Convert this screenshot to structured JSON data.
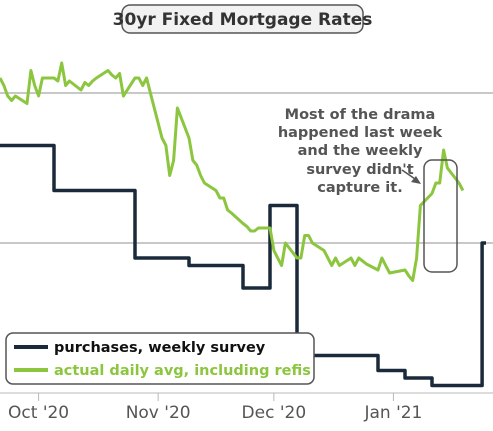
{
  "chart_data": {
    "type": "line",
    "title": "30yr Fixed Mortgage Rates",
    "x_ticks": [
      {
        "label": "Oct '20",
        "date": "2020-10-01"
      },
      {
        "label": "Nov '20",
        "date": "2020-11-01"
      },
      {
        "label": "Dec '20",
        "date": "2020-12-01"
      },
      {
        "label": "Jan '21",
        "date": "2021-01-01"
      }
    ],
    "xlim": [
      "2020-09-21",
      "2021-01-25"
    ],
    "series": [
      {
        "name": "purchases, weekly survey",
        "color": "#1a2a3a",
        "style": "step",
        "points": [
          [
            "2020-09-21",
            3.115
          ],
          [
            "2020-09-28",
            3.115
          ],
          [
            "2020-10-05",
            3.085
          ],
          [
            "2020-10-12",
            3.085
          ],
          [
            "2020-10-19",
            3.085
          ],
          [
            "2020-10-26",
            3.04
          ],
          [
            "2020-11-02",
            3.04
          ],
          [
            "2020-11-09",
            3.035
          ],
          [
            "2020-11-16",
            3.035
          ],
          [
            "2020-11-23",
            3.02
          ],
          [
            "2020-11-30",
            3.075
          ],
          [
            "2020-12-07",
            2.975
          ],
          [
            "2020-12-14",
            2.975
          ],
          [
            "2020-12-21",
            2.975
          ],
          [
            "2020-12-28",
            2.965
          ],
          [
            "2021-01-04",
            2.96
          ],
          [
            "2021-01-11",
            2.955
          ],
          [
            "2021-01-18",
            2.955
          ],
          [
            "2021-01-24",
            3.05
          ],
          [
            "2021-01-25",
            3.05
          ]
        ]
      },
      {
        "name": "actual daily avg, including refis",
        "color": "#8cc63f",
        "style": "line",
        "points": [
          [
            "2020-09-21",
            3.16
          ],
          [
            "2020-09-22",
            3.155
          ],
          [
            "2020-09-23",
            3.148
          ],
          [
            "2020-09-24",
            3.145
          ],
          [
            "2020-09-25",
            3.148
          ],
          [
            "2020-09-28",
            3.143
          ],
          [
            "2020-09-29",
            3.165
          ],
          [
            "2020-09-30",
            3.155
          ],
          [
            "2020-10-01",
            3.148
          ],
          [
            "2020-10-02",
            3.16
          ],
          [
            "2020-10-05",
            3.16
          ],
          [
            "2020-10-06",
            3.158
          ],
          [
            "2020-10-07",
            3.17
          ],
          [
            "2020-10-08",
            3.155
          ],
          [
            "2020-10-09",
            3.158
          ],
          [
            "2020-10-12",
            3.152
          ],
          [
            "2020-10-13",
            3.157
          ],
          [
            "2020-10-14",
            3.155
          ],
          [
            "2020-10-15",
            3.158
          ],
          [
            "2020-10-16",
            3.16
          ],
          [
            "2020-10-19",
            3.165
          ],
          [
            "2020-10-20",
            3.162
          ],
          [
            "2020-10-21",
            3.16
          ],
          [
            "2020-10-22",
            3.163
          ],
          [
            "2020-10-23",
            3.148
          ],
          [
            "2020-10-26",
            3.16
          ],
          [
            "2020-10-27",
            3.16
          ],
          [
            "2020-10-28",
            3.155
          ],
          [
            "2020-10-29",
            3.16
          ],
          [
            "2020-10-30",
            3.15
          ],
          [
            "2020-11-02",
            3.12
          ],
          [
            "2020-11-03",
            3.115
          ],
          [
            "2020-11-04",
            3.095
          ],
          [
            "2020-11-05",
            3.105
          ],
          [
            "2020-11-06",
            3.14
          ],
          [
            "2020-11-09",
            3.12
          ],
          [
            "2020-11-10",
            3.105
          ],
          [
            "2020-11-11",
            3.102
          ],
          [
            "2020-11-12",
            3.095
          ],
          [
            "2020-11-13",
            3.09
          ],
          [
            "2020-11-16",
            3.085
          ],
          [
            "2020-11-17",
            3.08
          ],
          [
            "2020-11-18",
            3.08
          ],
          [
            "2020-11-19",
            3.072
          ],
          [
            "2020-11-20",
            3.07
          ],
          [
            "2020-11-23",
            3.063
          ],
          [
            "2020-11-24",
            3.061
          ],
          [
            "2020-11-25",
            3.058
          ],
          [
            "2020-11-26",
            3.058
          ],
          [
            "2020-11-27",
            3.06
          ],
          [
            "2020-11-30",
            3.06
          ],
          [
            "2020-12-01",
            3.045
          ],
          [
            "2020-12-02",
            3.04
          ],
          [
            "2020-12-03",
            3.035
          ],
          [
            "2020-12-04",
            3.05
          ],
          [
            "2020-12-07",
            3.04
          ],
          [
            "2020-12-08",
            3.04
          ],
          [
            "2020-12-09",
            3.055
          ],
          [
            "2020-12-10",
            3.055
          ],
          [
            "2020-12-11",
            3.05
          ],
          [
            "2020-12-14",
            3.045
          ],
          [
            "2020-12-15",
            3.04
          ],
          [
            "2020-12-16",
            3.035
          ],
          [
            "2020-12-17",
            3.04
          ],
          [
            "2020-12-18",
            3.035
          ],
          [
            "2020-12-21",
            3.04
          ],
          [
            "2020-12-22",
            3.035
          ],
          [
            "2020-12-23",
            3.04
          ],
          [
            "2020-12-24",
            3.038
          ],
          [
            "2020-12-25",
            3.036
          ],
          [
            "2020-12-28",
            3.032
          ],
          [
            "2020-12-29",
            3.04
          ],
          [
            "2020-12-30",
            3.035
          ],
          [
            "2020-12-31",
            3.03
          ],
          [
            "2021-01-04",
            3.032
          ],
          [
            "2021-01-05",
            3.028
          ],
          [
            "2021-01-06",
            3.025
          ],
          [
            "2021-01-07",
            3.04
          ],
          [
            "2021-01-08",
            3.075
          ],
          [
            "2021-01-11",
            3.083
          ],
          [
            "2021-01-12",
            3.09
          ],
          [
            "2021-01-13",
            3.09
          ],
          [
            "2021-01-14",
            3.112
          ],
          [
            "2021-01-15",
            3.1
          ],
          [
            "2021-01-18",
            3.09
          ],
          [
            "2021-01-19",
            3.085
          ]
        ]
      }
    ],
    "legend": {
      "position": "bottom-left",
      "entries": [
        {
          "label": "purchases, weekly survey",
          "color": "#1a2a3a"
        },
        {
          "label": "actual daily avg, including refis",
          "color": "#8cc63f"
        }
      ]
    },
    "annotation": {
      "lines": [
        "Most of the drama",
        "happened last week",
        "and the weekly",
        "survey didn't",
        "capture it."
      ],
      "highlight_from": "2021-01-07",
      "highlight_to": "2021-01-14"
    },
    "grid": "horizontal"
  }
}
